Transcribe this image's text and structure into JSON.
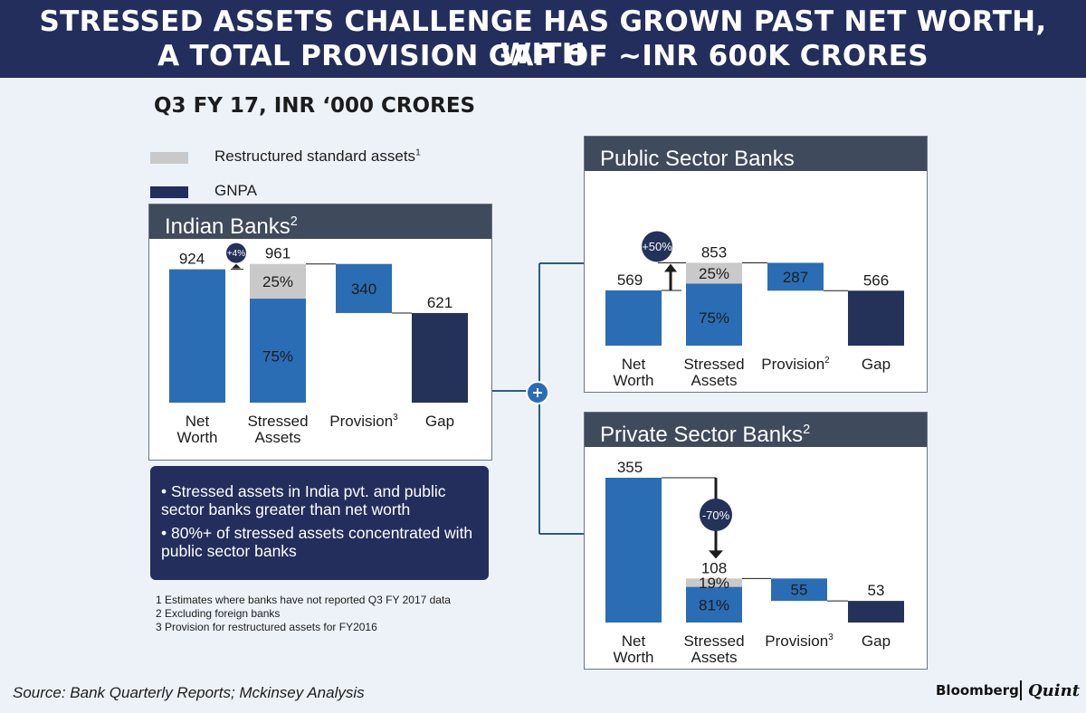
{
  "title_line1": "STRESSED ASSETS CHALLENGE HAS GROWN PAST NET WORTH, WITH",
  "title_line2": "A TOTAL PROVISION  GAP OF ~INR 600K CRORES",
  "subtitle": "Q3 FY 17, INR ‘000 CRORES",
  "legend": {
    "restructured": "Restructured standard assets",
    "restructured_sup": "1",
    "gnpa": "GNPA"
  },
  "colors": {
    "header": "#232e5c",
    "gnpa": "#2a6db5",
    "restructured": "#c9c9c9",
    "gap": "#243159",
    "panel_title": "#3f4a5c",
    "connector": "#2b5f7a"
  },
  "panels": [
    {
      "title": "Indian Banks",
      "title_sup": "2"
    },
    {
      "title": "Public Sector Banks",
      "title_sup": ""
    },
    {
      "title": "Private Sector Banks",
      "title_sup": "2"
    }
  ],
  "category_labels": {
    "net_worth": [
      "Net",
      "Worth"
    ],
    "stressed": [
      "Stressed",
      "Assets"
    ],
    "provision": "Provision",
    "gap": "Gap"
  },
  "chart_data": [
    {
      "type": "bar",
      "name": "Indian Banks",
      "categories": [
        "Net Worth",
        "Stressed Assets",
        "Provision",
        "Gap"
      ],
      "values": [
        924,
        961,
        340,
        621
      ],
      "stressed_split": {
        "gnpa_pct": "75%",
        "restructured_pct": "25%"
      },
      "provision_sup": "3",
      "change_badge": "+4%"
    },
    {
      "type": "bar",
      "name": "Public Sector Banks",
      "categories": [
        "Net Worth",
        "Stressed Assets",
        "Provision",
        "Gap"
      ],
      "values": [
        569,
        853,
        287,
        566
      ],
      "stressed_split": {
        "gnpa_pct": "75%",
        "restructured_pct": "25%"
      },
      "provision_sup": "2",
      "change_badge": "+50%"
    },
    {
      "type": "bar",
      "name": "Private Sector Banks",
      "categories": [
        "Net Worth",
        "Stressed Assets",
        "Provision",
        "Gap"
      ],
      "values": [
        355,
        108,
        55,
        53
      ],
      "stressed_split": {
        "gnpa_pct": "81%",
        "restructured_pct": "19%"
      },
      "provision_sup": "3",
      "change_badge": "-70%"
    }
  ],
  "bullets": [
    "Stressed assets in India pvt. and public sector banks greater than net worth",
    "80%+ of stressed assets concentrated with public sector banks"
  ],
  "footnotes": [
    "1  Estimates where banks have not reported Q3 FY 2017 data",
    "2  Excluding foreign banks",
    "3  Provision for restructured assets for FY2016"
  ],
  "source": "Source: Bank Quarterly Reports; Mckinsey Analysis",
  "brand": {
    "left": "Bloomberg",
    "right": "Quint"
  }
}
